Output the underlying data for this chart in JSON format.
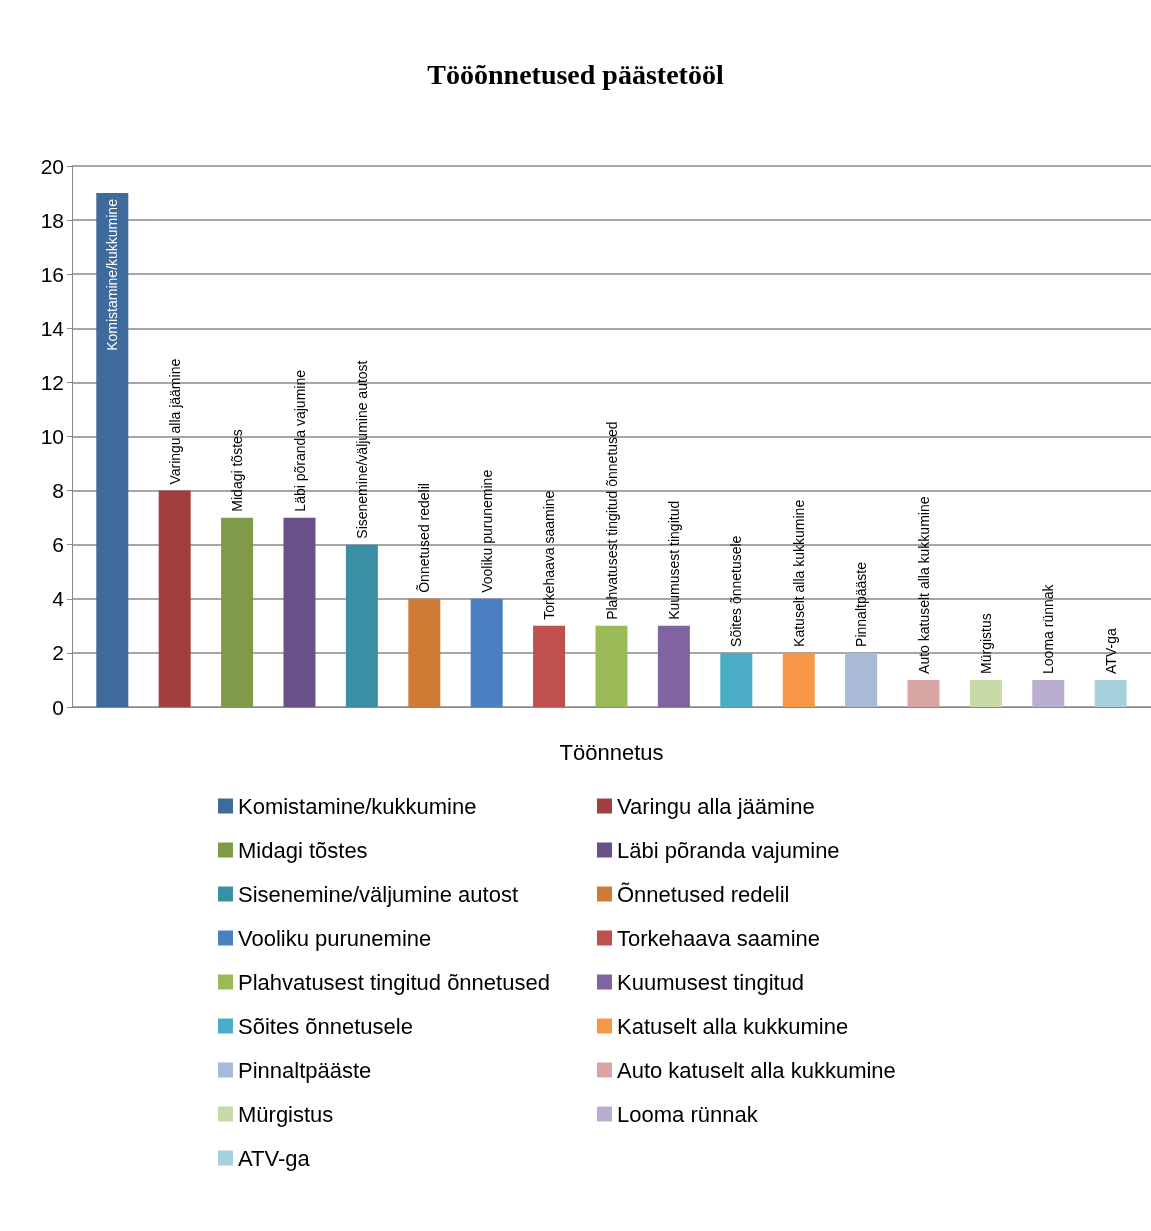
{
  "chart_data": {
    "type": "bar",
    "title": "Tööõnnetused päästetööl",
    "xlabel": "Töönnetus",
    "categories": [
      null
    ],
    "series": [
      {
        "name": "Komistamine/kukkumine",
        "color": "#3f6a9c",
        "values": [
          19
        ]
      },
      {
        "name": "Varingu alla jäämine",
        "color": "#a03f3d",
        "values": [
          8
        ]
      },
      {
        "name": "Midagi tõstes",
        "color": "#7f9a48",
        "values": [
          7
        ]
      },
      {
        "name": "Läbi põranda vajumine",
        "color": "#6a5088",
        "values": [
          7
        ]
      },
      {
        "name": "Sisenemine/väljumine autost",
        "color": "#3a8fa5",
        "values": [
          6
        ]
      },
      {
        "name": "Õnnetused redelil",
        "color": "#cf7a35",
        "values": [
          4
        ]
      },
      {
        "name": "Vooliku purunemine",
        "color": "#4a7fc1",
        "values": [
          4
        ]
      },
      {
        "name": "Torkehaava saamine",
        "color": "#c0504d",
        "values": [
          3
        ]
      },
      {
        "name": "Plahvatusest tingitud õnnetused",
        "color": "#9bbb59",
        "values": [
          3
        ]
      },
      {
        "name": "Kuumusest tingitud",
        "color": "#8064a2",
        "values": [
          3
        ]
      },
      {
        "name": "Sõites õnnetusele",
        "color": "#4bacc6",
        "values": [
          2
        ]
      },
      {
        "name": "Katuselt alla kukkumine",
        "color": "#f79646",
        "values": [
          2
        ]
      },
      {
        "name": "Pinnaltpääste",
        "color": "#a9b9d8",
        "values": [
          2
        ]
      },
      {
        "name": "Auto katuselt alla kukkumine",
        "color": "#d9a5a4",
        "values": [
          1
        ]
      },
      {
        "name": "Mürgistus",
        "color": "#c9daa9",
        "values": [
          1
        ]
      },
      {
        "name": "Looma rünnak",
        "color": "#b9aed0",
        "values": [
          1
        ]
      },
      {
        "name": "ATV-ga",
        "color": "#a6d0dc",
        "values": [
          1
        ]
      }
    ],
    "ylim": [
      0,
      20
    ],
    "yticks": [
      0,
      2,
      4,
      6,
      8,
      10,
      12,
      14,
      16,
      18,
      20
    ],
    "grid": "y",
    "legend": "bottom"
  }
}
